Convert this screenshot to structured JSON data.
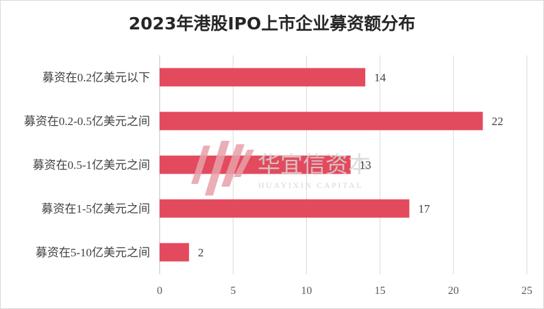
{
  "chart_data": {
    "type": "bar",
    "orientation": "horizontal",
    "title": "2023年港股IPO上市企业募资额分布",
    "categories": [
      "募资在0.2亿美元以下",
      "募资在0.2-0.5亿美元之间",
      "募资在0.5-1亿美元之间",
      "募资在1-5亿美元之间",
      "募资在5-10亿美元之间"
    ],
    "values": [
      14,
      22,
      13,
      17,
      2
    ],
    "xlim": [
      0,
      25
    ],
    "xticks": [
      "0",
      "5",
      "10",
      "15",
      "20",
      "25"
    ],
    "grid": true,
    "legend": "none",
    "bar_color": "#e34a5e"
  },
  "watermark": {
    "text_cn": "华宜信资本",
    "text_en": "HUAYIXIN CAPITAL"
  }
}
